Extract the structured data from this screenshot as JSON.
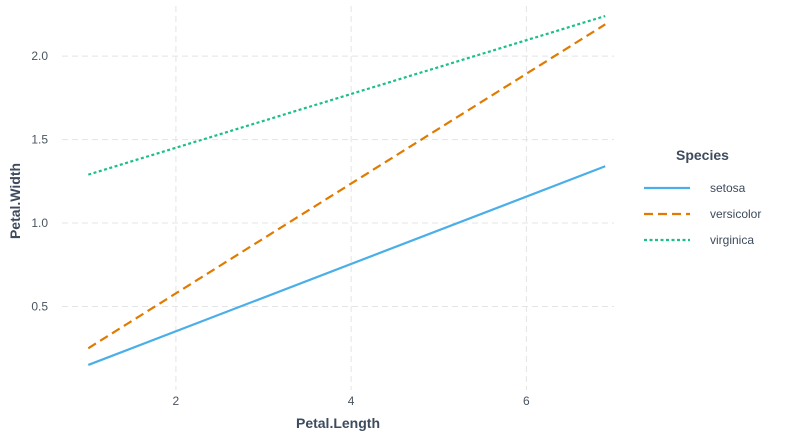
{
  "chart_data": {
    "type": "line",
    "xlabel": "Petal.Length",
    "ylabel": "Petal.Width",
    "xlim": [
      0.7,
      7.0
    ],
    "ylim": [
      0.0,
      2.3
    ],
    "x_ticks": [
      2,
      4,
      6
    ],
    "y_ticks": [
      0.5,
      1.0,
      1.5,
      2.0
    ],
    "x_tick_labels": [
      "2",
      "4",
      "6"
    ],
    "y_tick_labels": [
      "0.5",
      "1.0",
      "1.5",
      "2.0"
    ],
    "grid": true,
    "legend": {
      "title": "Species",
      "placement": "right"
    },
    "series": [
      {
        "name": "setosa",
        "color": "#4aaee8",
        "dash": "solid",
        "x": [
          1.0,
          6.9
        ],
        "y": [
          0.15,
          1.34
        ]
      },
      {
        "name": "versicolor",
        "color": "#e07b00",
        "dash": "dashed",
        "x": [
          1.0,
          6.9
        ],
        "y": [
          0.25,
          2.19
        ]
      },
      {
        "name": "virginica",
        "color": "#1bbf8a",
        "dash": "dotted",
        "x": [
          1.0,
          6.9
        ],
        "y": [
          1.29,
          2.24
        ]
      }
    ]
  }
}
